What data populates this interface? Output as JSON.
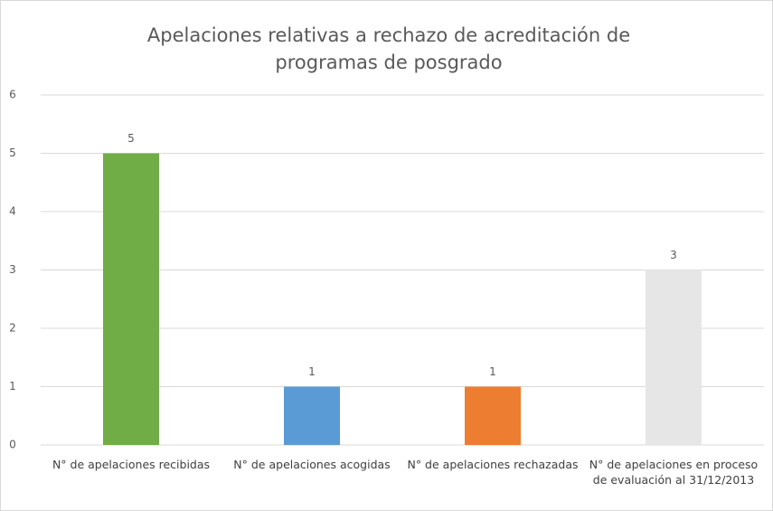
{
  "chart_data": {
    "type": "bar",
    "title": "Apelaciones relativas a rechazo de acreditación de programas de posgrado",
    "categories": [
      "N° de apelaciones recibidas",
      "N° de apelaciones acogidas",
      "N° de apelaciones rechazadas",
      "N° de apelaciones en proceso de evaluación al 31/12/2013"
    ],
    "values": [
      5,
      1,
      1,
      3
    ],
    "colors": [
      "#70ad47",
      "#5b9bd5",
      "#ed7d31",
      "#e7e6e6"
    ],
    "ylim": [
      0,
      6
    ],
    "yticks": [
      0,
      1,
      2,
      3,
      4,
      5,
      6
    ],
    "grid": true
  }
}
